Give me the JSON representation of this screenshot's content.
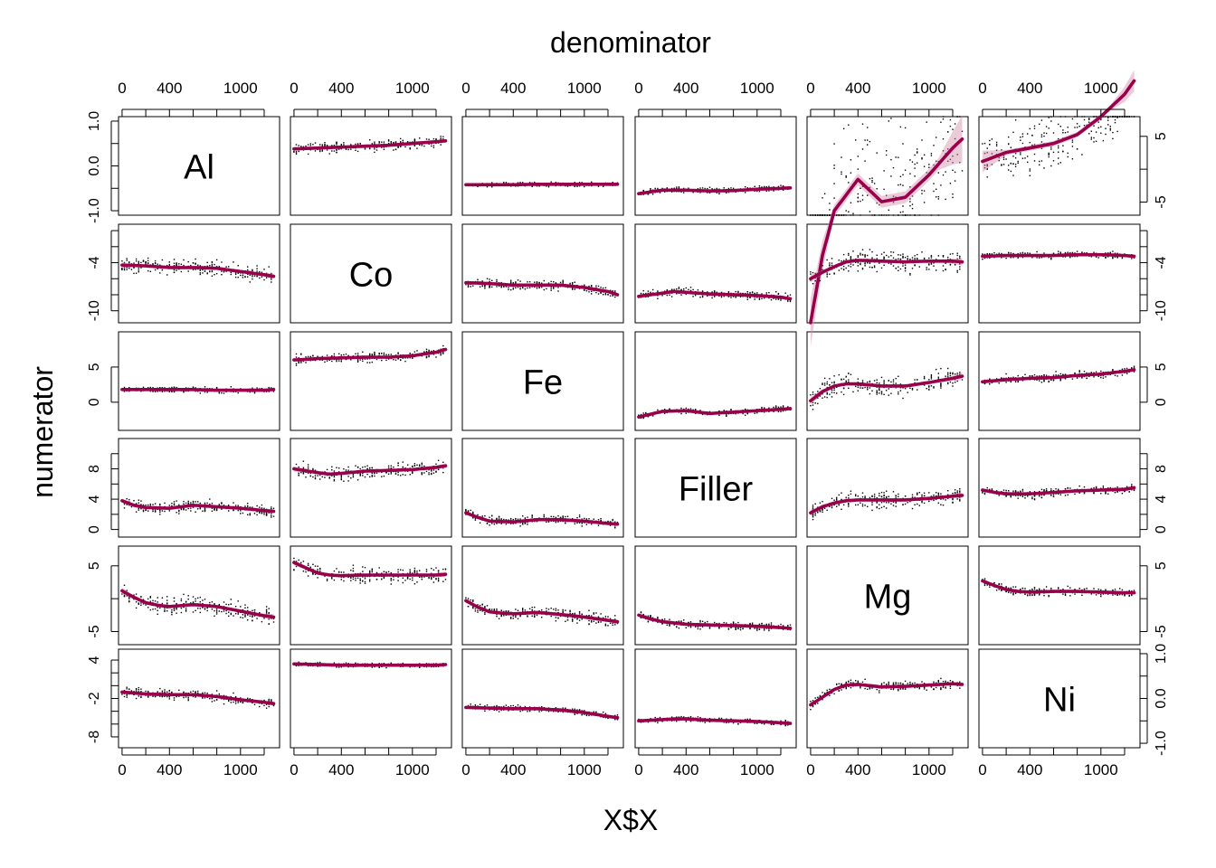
{
  "chart_data": {
    "type": "scatter",
    "layout": "matrix",
    "variables": [
      "Al",
      "Co",
      "Fe",
      "Filler",
      "Mg",
      "Ni"
    ],
    "title": "denominator",
    "xlabel": "X$X",
    "ylabel": "numerator",
    "xlim": [
      -30,
      1330
    ],
    "x_ticks": [
      0,
      200,
      400,
      600,
      800,
      1000,
      1200
    ],
    "x_tick_labels": [
      "0",
      "400",
      "1000"
    ],
    "x_tick_label_values": [
      0,
      400,
      1000
    ],
    "colors": {
      "smooth": "#99004C",
      "band": "#D08BA6",
      "points": "#000000"
    },
    "rows": [
      {
        "name": "Al",
        "ylim": [
          -1.1,
          1.1
        ],
        "ticks": [
          -1.0,
          -0.5,
          0.0,
          0.5,
          1.0
        ],
        "tick_labels": [
          "-1.0",
          "0.0",
          "1.0"
        ],
        "tick_label_values": [
          -1.0,
          0.0,
          1.0
        ],
        "tick_side": "left"
      },
      {
        "name": "Co",
        "ylim": [
          -11.5,
          0.8
        ],
        "ticks": [
          -10,
          -8,
          -6,
          -4,
          -2,
          0
        ],
        "tick_labels": [
          "-10",
          "-4"
        ],
        "tick_label_values": [
          -10,
          -4
        ],
        "tick_side": "left"
      },
      {
        "name": "Fe",
        "ylim": [
          -4,
          10
        ],
        "ticks": [
          0,
          5
        ],
        "tick_labels": [
          "0",
          "5"
        ],
        "tick_label_values": [
          0,
          5
        ],
        "tick_side": "left"
      },
      {
        "name": "Filler",
        "ylim": [
          -1,
          12
        ],
        "ticks": [
          0,
          2,
          4,
          6,
          8,
          10
        ],
        "tick_labels": [
          "0",
          "4",
          "8"
        ],
        "tick_label_values": [
          0,
          4,
          8
        ],
        "tick_side": "left"
      },
      {
        "name": "Mg",
        "ylim": [
          -7,
          8
        ],
        "ticks": [
          -5,
          0,
          5
        ],
        "tick_labels": [
          "-5",
          "5"
        ],
        "tick_label_values": [
          -5,
          5
        ],
        "tick_side": "left"
      },
      {
        "name": "Ni",
        "ylim": [
          -9.7,
          5.7
        ],
        "ticks": [
          -8,
          -6,
          -4,
          -2,
          0,
          2,
          4
        ],
        "tick_labels": [
          "-8",
          "-2",
          "4"
        ],
        "tick_label_values": [
          -8,
          -2,
          4
        ],
        "tick_side": "left"
      }
    ],
    "right_axes": [
      {
        "row": 0,
        "ylim": [
          -7,
          8
        ],
        "ticks": [
          -5,
          0,
          5
        ],
        "tick_labels": [
          "-5",
          "5"
        ],
        "tick_label_values": [
          -5,
          5
        ]
      },
      {
        "row": 1,
        "ylim": [
          -11.5,
          0.8
        ],
        "ticks": [
          -10,
          -8,
          -6,
          -4,
          -2,
          0
        ],
        "tick_labels": [
          "-10",
          "-4"
        ],
        "tick_label_values": [
          -10,
          -4
        ]
      },
      {
        "row": 2,
        "ylim": [
          -4,
          10
        ],
        "ticks": [
          0,
          5
        ],
        "tick_labels": [
          "0",
          "5"
        ],
        "tick_label_values": [
          0,
          5
        ]
      },
      {
        "row": 3,
        "ylim": [
          -1,
          12
        ],
        "ticks": [
          0,
          2,
          4,
          6,
          8,
          10
        ],
        "tick_labels": [
          "0",
          "4",
          "8"
        ],
        "tick_label_values": [
          0,
          4,
          8
        ]
      },
      {
        "row": 4,
        "ylim": [
          -7,
          8
        ],
        "ticks": [
          -5,
          0,
          5
        ],
        "tick_labels": [
          "-5",
          "5"
        ],
        "tick_label_values": [
          -5,
          5
        ]
      },
      {
        "row": 5,
        "ylim": [
          -1.1,
          1.1
        ],
        "ticks": [
          -1.0,
          -0.5,
          0.0,
          0.5,
          1.0
        ],
        "tick_labels": [
          "-1.0",
          "0.0",
          "1.0"
        ],
        "tick_label_values": [
          -1.0,
          0.0,
          1.0
        ]
      }
    ],
    "cells": [
      {
        "row": 0,
        "col": 1,
        "x": [
          0,
          200,
          400,
          600,
          800,
          1000,
          1200,
          1280
        ],
        "y": [
          0.38,
          0.4,
          0.42,
          0.44,
          0.46,
          0.5,
          0.54,
          0.56
        ],
        "spread": 0.18
      },
      {
        "row": 0,
        "col": 2,
        "x": [
          0,
          200,
          400,
          600,
          800,
          1000,
          1200,
          1280
        ],
        "y": [
          -0.42,
          -0.42,
          -0.42,
          -0.41,
          -0.41,
          -0.41,
          -0.41,
          -0.41
        ],
        "spread": 0.07
      },
      {
        "row": 0,
        "col": 3,
        "x": [
          0,
          200,
          400,
          600,
          800,
          1000,
          1200,
          1280
        ],
        "y": [
          -0.62,
          -0.54,
          -0.54,
          -0.56,
          -0.55,
          -0.52,
          -0.5,
          -0.49
        ],
        "spread": 0.1
      },
      {
        "row": 0,
        "col": 4,
        "x": [
          0,
          100,
          200,
          400,
          600,
          800,
          1000,
          1200,
          1280
        ],
        "y": [
          -3.5,
          -2.0,
          -1.0,
          -0.3,
          -0.8,
          -0.7,
          -0.2,
          0.4,
          0.6
        ],
        "spread": 2.2
      },
      {
        "row": 0,
        "col": 5,
        "x": [
          0,
          200,
          400,
          600,
          800,
          1000,
          1200,
          1280
        ],
        "y": [
          0.1,
          0.3,
          0.4,
          0.5,
          0.7,
          1.1,
          1.6,
          1.9
        ],
        "spread": 1.0
      },
      {
        "row": 1,
        "col": 0,
        "x": [
          0,
          200,
          400,
          600,
          800,
          1000,
          1200,
          1280
        ],
        "y": [
          -4.3,
          -4.4,
          -4.6,
          -4.6,
          -4.7,
          -5.1,
          -5.5,
          -5.7
        ],
        "spread": 1.4
      },
      {
        "row": 1,
        "col": 2,
        "x": [
          0,
          200,
          400,
          600,
          800,
          1000,
          1200,
          1280
        ],
        "y": [
          -6.5,
          -6.6,
          -6.8,
          -6.8,
          -6.8,
          -7.1,
          -7.6,
          -8.0
        ],
        "spread": 0.9
      },
      {
        "row": 1,
        "col": 3,
        "x": [
          0,
          200,
          300,
          400,
          600,
          800,
          1000,
          1200,
          1280
        ],
        "y": [
          -8.2,
          -7.8,
          -7.6,
          -7.7,
          -7.9,
          -8.0,
          -8.1,
          -8.3,
          -8.5
        ],
        "spread": 0.8
      },
      {
        "row": 1,
        "col": 4,
        "x": [
          0,
          100,
          200,
          300,
          400,
          600,
          800,
          1000,
          1200,
          1280
        ],
        "y": [
          -6.0,
          -5.2,
          -4.5,
          -3.9,
          -3.7,
          -3.8,
          -3.9,
          -3.8,
          -3.8,
          -3.9
        ],
        "spread": 2.0
      },
      {
        "row": 1,
        "col": 5,
        "x": [
          0,
          200,
          400,
          600,
          800,
          1000,
          1200,
          1280
        ],
        "y": [
          -3.2,
          -3.1,
          -3.1,
          -3.1,
          -3.0,
          -3.0,
          -3.1,
          -3.2
        ],
        "spread": 0.6
      },
      {
        "row": 2,
        "col": 0,
        "x": [
          0,
          200,
          400,
          600,
          800,
          1000,
          1200,
          1280
        ],
        "y": [
          1.8,
          1.8,
          1.8,
          1.8,
          1.7,
          1.7,
          1.7,
          1.8
        ],
        "spread": 0.6
      },
      {
        "row": 2,
        "col": 1,
        "x": [
          0,
          200,
          400,
          600,
          800,
          1000,
          1200,
          1280
        ],
        "y": [
          6.0,
          6.2,
          6.3,
          6.4,
          6.4,
          6.6,
          7.1,
          7.5
        ],
        "spread": 1.0
      },
      {
        "row": 2,
        "col": 3,
        "x": [
          0,
          100,
          200,
          400,
          600,
          800,
          1000,
          1200,
          1280
        ],
        "y": [
          -2.1,
          -1.7,
          -1.3,
          -1.2,
          -1.6,
          -1.4,
          -1.2,
          -1.0,
          -0.9
        ],
        "spread": 0.6
      },
      {
        "row": 2,
        "col": 4,
        "x": [
          0,
          100,
          200,
          300,
          400,
          600,
          800,
          1000,
          1200,
          1280
        ],
        "y": [
          0.2,
          1.5,
          2.3,
          2.6,
          2.6,
          2.3,
          2.3,
          2.8,
          3.4,
          3.7
        ],
        "spread": 2.2
      },
      {
        "row": 2,
        "col": 5,
        "x": [
          0,
          200,
          400,
          600,
          800,
          1000,
          1200,
          1280
        ],
        "y": [
          2.9,
          3.2,
          3.4,
          3.5,
          3.8,
          4.0,
          4.4,
          4.6
        ],
        "spread": 0.9
      },
      {
        "row": 3,
        "col": 0,
        "x": [
          0,
          100,
          200,
          400,
          600,
          800,
          1000,
          1200,
          1280
        ],
        "y": [
          3.8,
          3.2,
          2.9,
          2.8,
          3.2,
          3.0,
          2.8,
          2.5,
          2.4
        ],
        "spread": 1.2
      },
      {
        "row": 3,
        "col": 1,
        "x": [
          0,
          200,
          300,
          400,
          600,
          800,
          1000,
          1200,
          1280
        ],
        "y": [
          8.0,
          7.5,
          7.3,
          7.4,
          7.7,
          7.8,
          7.9,
          8.2,
          8.4
        ],
        "spread": 1.4
      },
      {
        "row": 3,
        "col": 2,
        "x": [
          0,
          100,
          200,
          400,
          600,
          800,
          1000,
          1200,
          1280
        ],
        "y": [
          2.2,
          1.6,
          1.1,
          1.0,
          1.3,
          1.3,
          1.1,
          0.8,
          0.7
        ],
        "spread": 0.9
      },
      {
        "row": 3,
        "col": 4,
        "x": [
          0,
          100,
          200,
          300,
          400,
          600,
          800,
          1000,
          1200,
          1280
        ],
        "y": [
          2.2,
          3.0,
          3.5,
          3.8,
          3.9,
          3.9,
          3.9,
          4.1,
          4.4,
          4.5
        ],
        "spread": 1.6
      },
      {
        "row": 3,
        "col": 5,
        "x": [
          0,
          100,
          200,
          400,
          600,
          800,
          1000,
          1200,
          1280
        ],
        "y": [
          5.2,
          4.9,
          4.7,
          4.7,
          4.9,
          5.1,
          5.2,
          5.3,
          5.5
        ],
        "spread": 0.9
      },
      {
        "row": 4,
        "col": 0,
        "x": [
          0,
          100,
          200,
          300,
          400,
          600,
          800,
          1000,
          1200,
          1280
        ],
        "y": [
          1.2,
          0.2,
          -0.6,
          -1.0,
          -1.2,
          -0.9,
          -1.2,
          -1.9,
          -2.6,
          -2.8
        ],
        "spread": 2.0
      },
      {
        "row": 4,
        "col": 1,
        "x": [
          0,
          100,
          200,
          300,
          400,
          600,
          800,
          1000,
          1200,
          1280
        ],
        "y": [
          5.5,
          4.7,
          3.9,
          3.6,
          3.5,
          3.6,
          3.6,
          3.6,
          3.6,
          3.7
        ],
        "spread": 1.8
      },
      {
        "row": 4,
        "col": 2,
        "x": [
          0,
          100,
          200,
          300,
          400,
          600,
          800,
          1000,
          1200,
          1280
        ],
        "y": [
          -0.3,
          -1.3,
          -2.0,
          -2.2,
          -2.3,
          -2.1,
          -2.4,
          -2.8,
          -3.3,
          -3.5
        ],
        "spread": 1.4
      },
      {
        "row": 4,
        "col": 3,
        "x": [
          0,
          100,
          200,
          400,
          600,
          800,
          1000,
          1200,
          1280
        ],
        "y": [
          -2.5,
          -3.1,
          -3.5,
          -3.9,
          -4.0,
          -4.1,
          -4.2,
          -4.4,
          -4.5
        ],
        "spread": 0.9
      },
      {
        "row": 4,
        "col": 5,
        "x": [
          0,
          100,
          200,
          300,
          400,
          600,
          800,
          1000,
          1200,
          1280
        ],
        "y": [
          2.7,
          2.0,
          1.4,
          1.1,
          1.0,
          1.1,
          1.1,
          1.0,
          0.9,
          0.9
        ],
        "spread": 1.0
      },
      {
        "row": 5,
        "col": 0,
        "x": [
          0,
          200,
          400,
          600,
          800,
          1000,
          1200,
          1280
        ],
        "y": [
          -1.0,
          -1.3,
          -1.4,
          -1.4,
          -1.7,
          -2.2,
          -2.6,
          -2.8
        ],
        "spread": 1.2
      },
      {
        "row": 5,
        "col": 1,
        "x": [
          0,
          200,
          400,
          600,
          800,
          1000,
          1200,
          1280
        ],
        "y": [
          3.4,
          3.3,
          3.2,
          3.2,
          3.2,
          3.2,
          3.2,
          3.3
        ],
        "spread": 0.5
      },
      {
        "row": 5,
        "col": 2,
        "x": [
          0,
          200,
          400,
          600,
          800,
          1000,
          1200,
          1280
        ],
        "y": [
          -3.4,
          -3.5,
          -3.6,
          -3.6,
          -3.8,
          -4.2,
          -4.8,
          -5.0
        ],
        "spread": 0.7
      },
      {
        "row": 5,
        "col": 3,
        "x": [
          0,
          200,
          300,
          400,
          600,
          800,
          1000,
          1200,
          1280
        ],
        "y": [
          -5.5,
          -5.3,
          -5.2,
          -5.2,
          -5.4,
          -5.5,
          -5.6,
          -5.8,
          -5.9
        ],
        "spread": 0.6
      },
      {
        "row": 5,
        "col": 4,
        "x": [
          0,
          100,
          200,
          300,
          400,
          600,
          800,
          1000,
          1200,
          1280
        ],
        "y": [
          -3.0,
          -1.8,
          -0.6,
          0.1,
          0.2,
          -0.2,
          -0.1,
          0.1,
          0.3,
          0.2
        ],
        "spread": 1.2
      }
    ]
  }
}
